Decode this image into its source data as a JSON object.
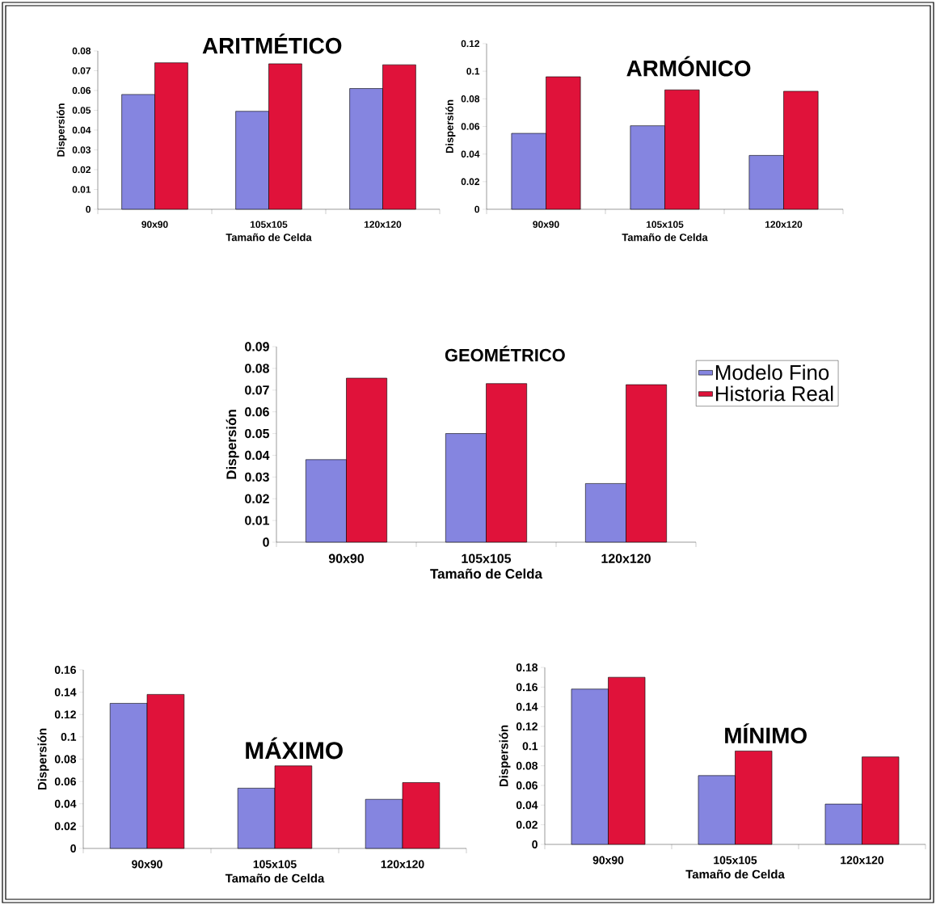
{
  "chart_data": [
    {
      "type": "bar",
      "title": "ARITMÉTICO",
      "xlabel": "Tamaño de Celda",
      "ylabel": "Dispersión",
      "categories": [
        "90x90",
        "105x105",
        "120x120"
      ],
      "series": [
        {
          "color": "#8585e0",
          "values": [
            0.058,
            0.0495,
            0.061
          ]
        },
        {
          "color": "#e0123a",
          "values": [
            0.074,
            0.0735,
            0.073
          ]
        }
      ],
      "ylim": [
        0,
        0.08
      ],
      "yticks": [
        0,
        0.01,
        0.02,
        0.03,
        0.04,
        0.05,
        0.06,
        0.07,
        0.08
      ],
      "grid": false
    },
    {
      "type": "bar",
      "title": "ARMÓNICO",
      "xlabel": "Tamaño de Celda",
      "ylabel": "Dispersión",
      "categories": [
        "90x90",
        "105x105",
        "120x120"
      ],
      "series": [
        {
          "color": "#8585e0",
          "values": [
            0.055,
            0.0605,
            0.039
          ]
        },
        {
          "color": "#e0123a",
          "values": [
            0.096,
            0.0865,
            0.0855
          ]
        }
      ],
      "ylim": [
        0,
        0.12
      ],
      "yticks": [
        0,
        0.02,
        0.04,
        0.06,
        0.08,
        0.1,
        0.12
      ],
      "grid": false
    },
    {
      "type": "bar",
      "title": "GEOMÉTRICO",
      "xlabel": "Tamaño de Celda",
      "ylabel": "Dispersión",
      "categories": [
        "90x90",
        "105x105",
        "120x120"
      ],
      "series": [
        {
          "name": "Modelo Fino",
          "color": "#8585e0",
          "values": [
            0.038,
            0.05,
            0.027
          ]
        },
        {
          "name": "Historia Real",
          "color": "#e0123a",
          "values": [
            0.0755,
            0.073,
            0.0725
          ]
        }
      ],
      "ylim": [
        0,
        0.09
      ],
      "yticks": [
        0,
        0.01,
        0.02,
        0.03,
        0.04,
        0.05,
        0.06,
        0.07,
        0.08,
        0.09
      ],
      "grid": false,
      "legend": "right"
    },
    {
      "type": "bar",
      "title": "MÁXIMO",
      "xlabel": "Tamaño de Celda",
      "ylabel": "Dispersión",
      "categories": [
        "90x90",
        "105x105",
        "120x120"
      ],
      "series": [
        {
          "color": "#8585e0",
          "values": [
            0.13,
            0.054,
            0.044
          ]
        },
        {
          "color": "#e0123a",
          "values": [
            0.138,
            0.074,
            0.059
          ]
        }
      ],
      "ylim": [
        0,
        0.16
      ],
      "yticks": [
        0,
        0.02,
        0.04,
        0.06,
        0.08,
        0.1,
        0.12,
        0.14,
        0.16
      ],
      "grid": false
    },
    {
      "type": "bar",
      "title": "MÍNIMO",
      "xlabel": "Tamaño de Celda",
      "ylabel": "Dispersión",
      "categories": [
        "90x90",
        "105x105",
        "120x120"
      ],
      "series": [
        {
          "color": "#8585e0",
          "values": [
            0.158,
            0.07,
            0.041
          ]
        },
        {
          "color": "#e0123a",
          "values": [
            0.17,
            0.095,
            0.089
          ]
        }
      ],
      "ylim": [
        0,
        0.18
      ],
      "yticks": [
        0,
        0.02,
        0.04,
        0.06,
        0.08,
        0.1,
        0.12,
        0.14,
        0.16,
        0.18
      ],
      "grid": false
    }
  ]
}
